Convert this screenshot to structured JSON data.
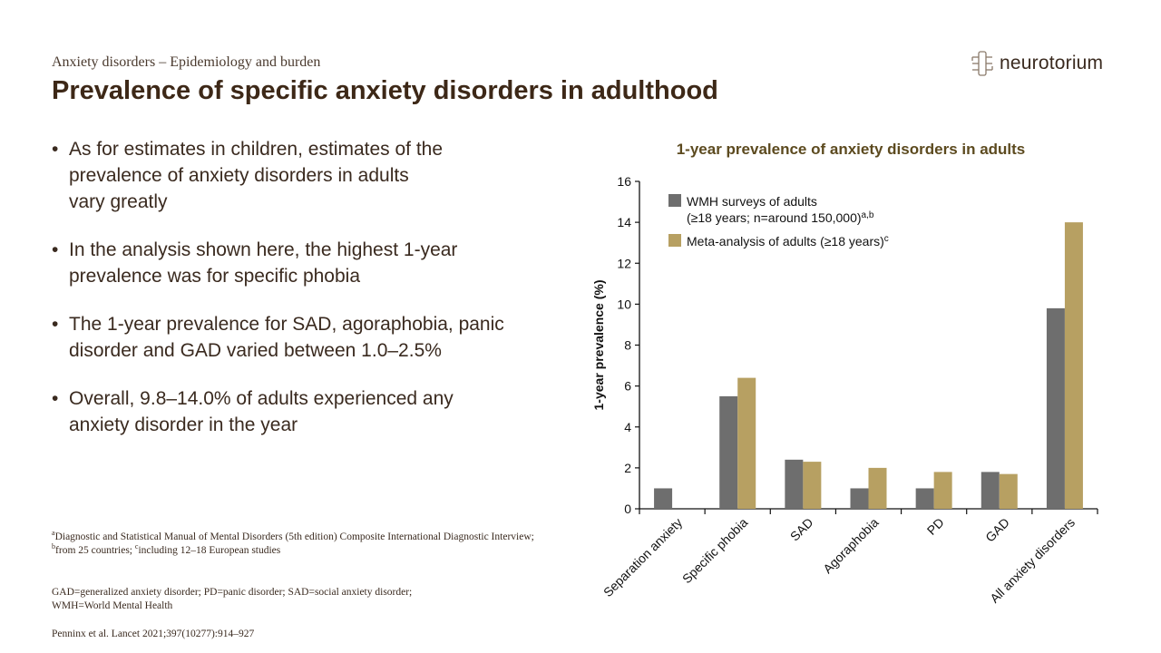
{
  "header": {
    "section": "Anxiety disorders – Epidemiology and burden",
    "title": "Prevalence of specific anxiety disorders in adulthood",
    "logo_text": "neurotorium"
  },
  "bullets": [
    "As for estimates in children, estimates of the\nprevalence of anxiety disorders in adults\nvary greatly",
    "In the analysis shown here, the highest 1-year\nprevalence was for specific phobia",
    "The 1-year prevalence for SAD, agoraphobia, panic\ndisorder and GAD varied between 1.0–2.5%",
    "Overall, 9.8–14.0% of adults experienced any\nanxiety disorder in the year"
  ],
  "footnotes": {
    "line1_a_sup": "a",
    "line1_a": "Diagnostic and Statistical Manual of Mental Disorders (5th edition) Composite International Diagnostic Interview;",
    "line2_b_sup": "b",
    "line2_b": "from 25 countries; ",
    "line2_c_sup": "c",
    "line2_c": "including 12–18 European studies",
    "abbreviations": "GAD=generalized anxiety disorder; PD=panic disorder; SAD=social anxiety disorder; WMH=World Mental Health",
    "reference": "Penninx et al. Lancet 2021;397(10277):914–927"
  },
  "chart_data": {
    "type": "bar",
    "title": "1-year prevalence of anxiety disorders in adults",
    "ylabel": "1-year prevalence (%)",
    "xlabel": "",
    "ylim": [
      0,
      16
    ],
    "yticks": [
      0,
      2,
      4,
      6,
      8,
      10,
      12,
      14,
      16
    ],
    "categories": [
      "Separation anxiety",
      "Specific phobia",
      "SAD",
      "Agoraphobia",
      "PD",
      "GAD",
      "All anxiety disorders"
    ],
    "series": [
      {
        "name": "WMH surveys of adults",
        "name_line2": "(≥18 years; n=around 150,000)",
        "name_sup": "a,b",
        "color": "#6e6e6e",
        "values": [
          1.0,
          5.5,
          2.4,
          1.0,
          1.0,
          1.8,
          9.8
        ]
      },
      {
        "name": "Meta-analysis of adults (≥18 years)",
        "name_sup": "c",
        "color": "#b7a062",
        "values": [
          null,
          6.4,
          2.3,
          2.0,
          1.8,
          1.7,
          14.0
        ]
      }
    ],
    "legend_position": "top-left",
    "grid": false
  }
}
